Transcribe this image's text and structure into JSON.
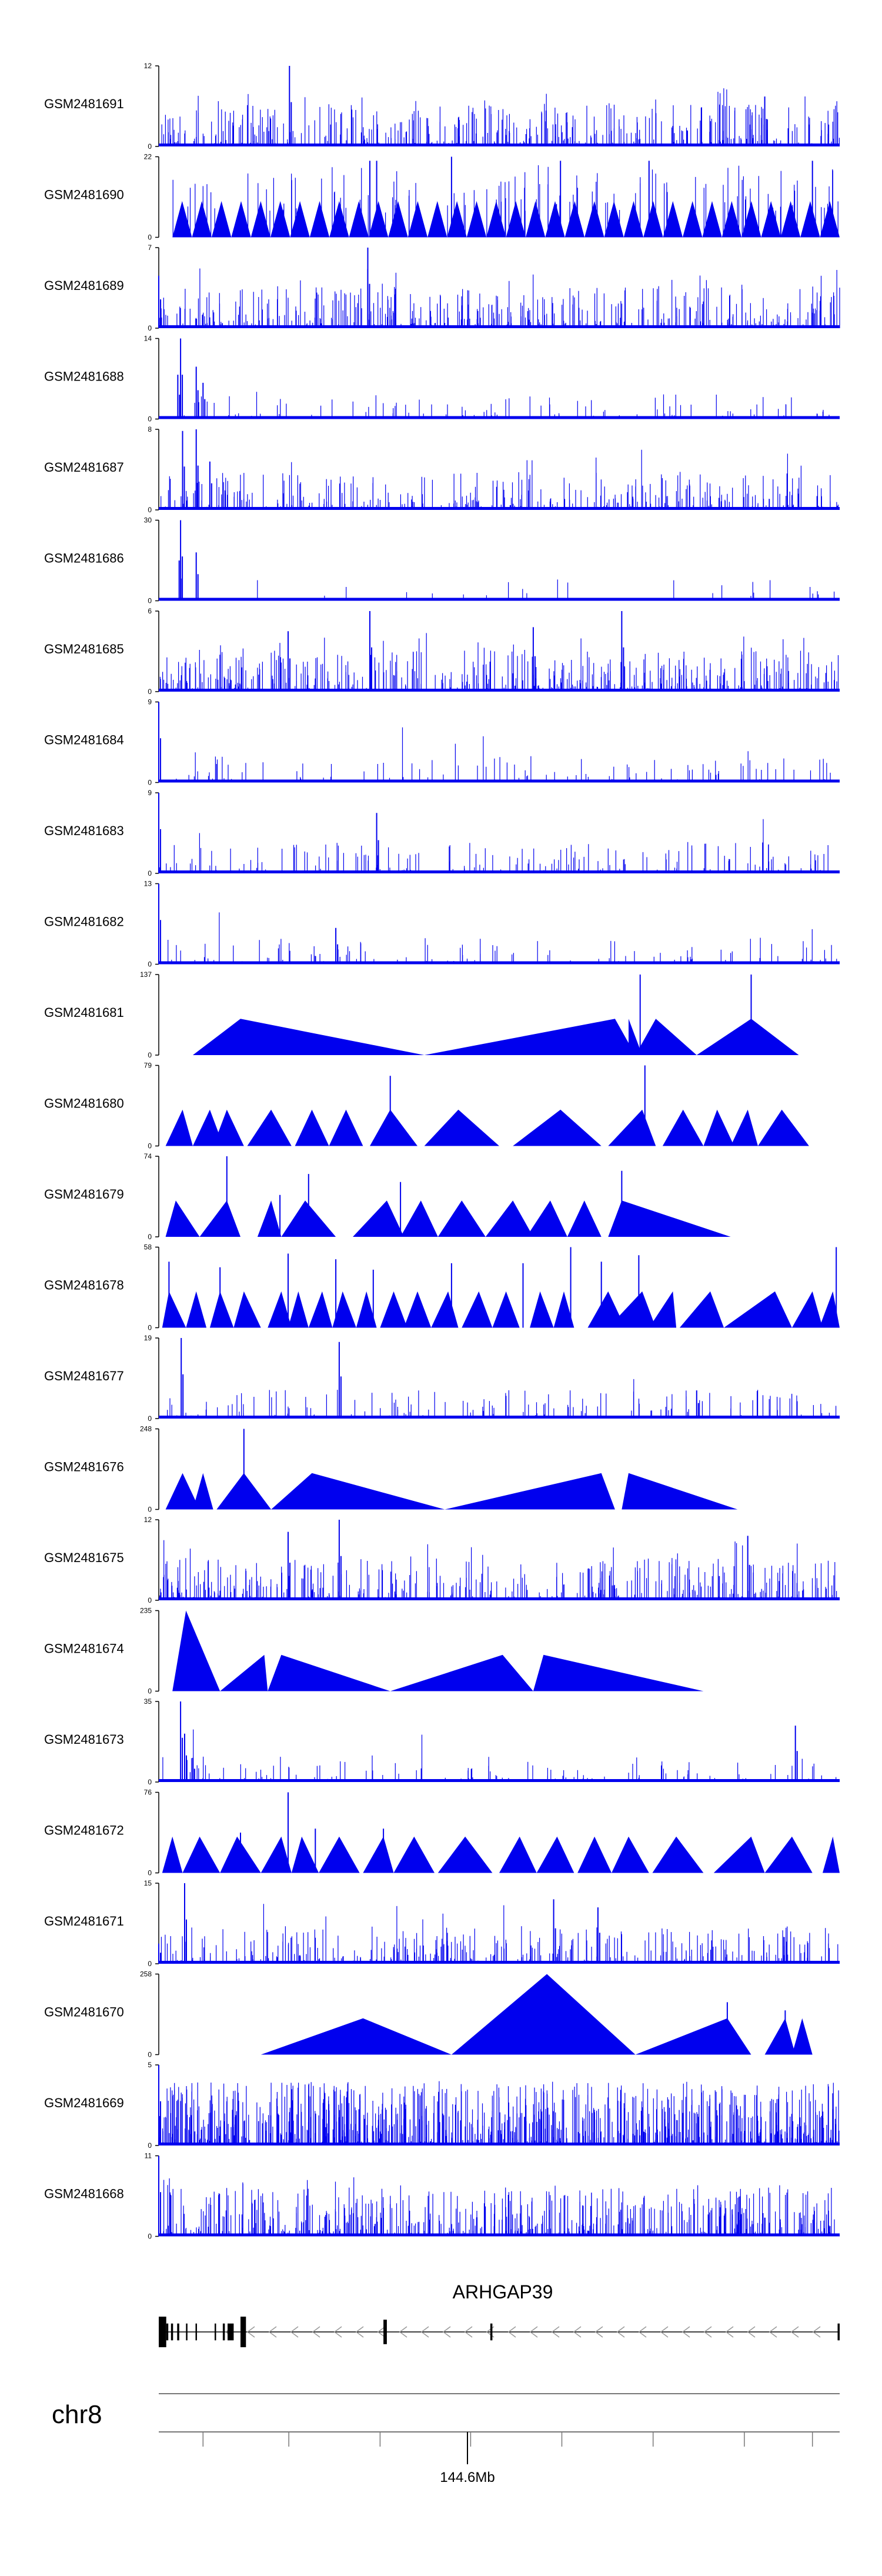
{
  "chart_data": {
    "type": "area",
    "title": "",
    "xlabel": "",
    "ylabel": "",
    "chromosome": "chr8",
    "gene": "ARHGAP39",
    "x_tick_label": "144.6Mb",
    "colors": {
      "signal": "#0000ee",
      "axis": "#000000",
      "gene": "#000000",
      "intron_arrow": "#999999"
    },
    "tracks": [
      {
        "name": "GSM2481691",
        "ymax": 12,
        "pattern": "noise",
        "density": 1.0,
        "spikes": [
          [
            0.192,
            1.0
          ],
          [
            0.89,
            0.62
          ]
        ]
      },
      {
        "name": "GSM2481690",
        "ymax": 22,
        "pattern": "triangles",
        "start": 0.02,
        "end": 1.0,
        "count": 34,
        "peak": 0.45,
        "spikes": [
          [
            0.43,
            1.0
          ],
          [
            0.31,
            0.95
          ],
          [
            0.59,
            0.95
          ],
          [
            0.32,
            0.95
          ],
          [
            0.72,
            0.95
          ],
          [
            0.96,
            0.95
          ]
        ]
      },
      {
        "name": "GSM2481689",
        "ymax": 7,
        "pattern": "noise",
        "density": 1.0,
        "spikes": [
          [
            0.307,
            1.0
          ],
          [
            0.0,
            0.65
          ]
        ]
      },
      {
        "name": "GSM2481688",
        "ymax": 14,
        "pattern": "noise",
        "density": 0.25,
        "spikes": [
          [
            0.032,
            1.0
          ],
          [
            0.055,
            0.65
          ],
          [
            0.028,
            0.55
          ],
          [
            0.065,
            0.45
          ]
        ]
      },
      {
        "name": "GSM2481687",
        "ymax": 8,
        "pattern": "noise",
        "density": 0.8,
        "spikes": [
          [
            0.055,
            1.0
          ],
          [
            0.035,
            0.98
          ],
          [
            0.075,
            0.6
          ]
        ]
      },
      {
        "name": "GSM2481686",
        "ymax": 30,
        "pattern": "noise",
        "density": 0.08,
        "spikes": [
          [
            0.032,
            1.0
          ],
          [
            0.055,
            0.6
          ],
          [
            0.03,
            0.5
          ]
        ]
      },
      {
        "name": "GSM2481685",
        "ymax": 6,
        "pattern": "noise",
        "density": 1.0,
        "spikes": [
          [
            0.31,
            1.0
          ],
          [
            0.68,
            1.0
          ],
          [
            0.19,
            0.75
          ],
          [
            0.55,
            0.8
          ]
        ]
      },
      {
        "name": "GSM2481684",
        "ymax": 9,
        "pattern": "noise",
        "density": 0.3,
        "spikes": [
          [
            0.0,
            1.0
          ]
        ]
      },
      {
        "name": "GSM2481683",
        "ymax": 9,
        "pattern": "noise",
        "density": 0.5,
        "spikes": [
          [
            0.0,
            1.0
          ],
          [
            0.32,
            0.75
          ]
        ]
      },
      {
        "name": "GSM2481682",
        "ymax": 13,
        "pattern": "noise",
        "density": 0.3,
        "spikes": [
          [
            0.0,
            1.0
          ],
          [
            0.26,
            0.45
          ]
        ]
      },
      {
        "name": "GSM2481681",
        "ymax": 137,
        "pattern": "shapes",
        "shapes": [
          [
            0.05,
            0.12,
            0.39,
            0.45
          ],
          [
            0.39,
            0.67,
            0.7,
            0.45
          ],
          [
            0.69,
            0.69,
            0.71,
            0.45
          ],
          [
            0.7,
            0.73,
            0.79,
            0.45
          ],
          [
            0.79,
            0.87,
            0.94,
            0.45
          ]
        ],
        "spikes": [
          [
            0.707,
            1.0
          ],
          [
            0.87,
            1.0
          ]
        ]
      },
      {
        "name": "GSM2481680",
        "ymax": 79,
        "pattern": "shapes",
        "shapes": [
          [
            0.01,
            0.035,
            0.05,
            0.45
          ],
          [
            0.05,
            0.075,
            0.095,
            0.45
          ],
          [
            0.08,
            0.1,
            0.125,
            0.45
          ],
          [
            0.13,
            0.165,
            0.195,
            0.45
          ],
          [
            0.2,
            0.225,
            0.25,
            0.45
          ],
          [
            0.25,
            0.275,
            0.3,
            0.45
          ],
          [
            0.31,
            0.34,
            0.38,
            0.45
          ],
          [
            0.39,
            0.44,
            0.5,
            0.45
          ],
          [
            0.52,
            0.59,
            0.65,
            0.45
          ],
          [
            0.66,
            0.71,
            0.73,
            0.45
          ],
          [
            0.74,
            0.77,
            0.8,
            0.45
          ],
          [
            0.8,
            0.82,
            0.845,
            0.45
          ],
          [
            0.84,
            0.865,
            0.88,
            0.45
          ],
          [
            0.88,
            0.915,
            0.955,
            0.45
          ]
        ],
        "spikes": [
          [
            0.714,
            1.0
          ],
          [
            0.34,
            0.87
          ]
        ]
      },
      {
        "name": "GSM2481679",
        "ymax": 74,
        "pattern": "shapes",
        "shapes": [
          [
            0.01,
            0.025,
            0.06,
            0.45
          ],
          [
            0.06,
            0.1,
            0.12,
            0.45
          ],
          [
            0.145,
            0.165,
            0.18,
            0.45
          ],
          [
            0.18,
            0.215,
            0.26,
            0.45
          ],
          [
            0.285,
            0.335,
            0.36,
            0.45
          ],
          [
            0.355,
            0.385,
            0.41,
            0.45
          ],
          [
            0.41,
            0.445,
            0.48,
            0.45
          ],
          [
            0.48,
            0.52,
            0.55,
            0.45
          ],
          [
            0.54,
            0.575,
            0.6,
            0.45
          ],
          [
            0.6,
            0.625,
            0.65,
            0.45
          ],
          [
            0.66,
            0.68,
            0.84,
            0.45
          ]
        ],
        "spikes": [
          [
            0.1,
            1.0
          ],
          [
            0.68,
            0.82
          ],
          [
            0.22,
            0.78
          ],
          [
            0.355,
            0.68
          ],
          [
            0.178,
            0.52
          ]
        ]
      },
      {
        "name": "GSM2481678",
        "ymax": 58,
        "pattern": "shapes",
        "shapes": [
          [
            0.005,
            0.015,
            0.04,
            0.45
          ],
          [
            0.04,
            0.055,
            0.07,
            0.45
          ],
          [
            0.075,
            0.09,
            0.11,
            0.45
          ],
          [
            0.11,
            0.125,
            0.15,
            0.45
          ],
          [
            0.16,
            0.18,
            0.195,
            0.45
          ],
          [
            0.19,
            0.205,
            0.22,
            0.45
          ],
          [
            0.22,
            0.24,
            0.255,
            0.45
          ],
          [
            0.255,
            0.27,
            0.29,
            0.45
          ],
          [
            0.29,
            0.305,
            0.32,
            0.45
          ],
          [
            0.325,
            0.345,
            0.365,
            0.45
          ],
          [
            0.36,
            0.38,
            0.4,
            0.45
          ],
          [
            0.4,
            0.425,
            0.44,
            0.45
          ],
          [
            0.445,
            0.47,
            0.49,
            0.45
          ],
          [
            0.49,
            0.51,
            0.53,
            0.45
          ],
          [
            0.545,
            0.56,
            0.58,
            0.45
          ],
          [
            0.58,
            0.595,
            0.61,
            0.45
          ],
          [
            0.63,
            0.66,
            0.685,
            0.45
          ],
          [
            0.66,
            0.71,
            0.73,
            0.45
          ],
          [
            0.72,
            0.755,
            0.76,
            0.45
          ],
          [
            0.765,
            0.81,
            0.83,
            0.45
          ],
          [
            0.83,
            0.905,
            0.93,
            0.45
          ],
          [
            0.93,
            0.96,
            0.975,
            0.45
          ],
          [
            0.97,
            0.99,
            1.0,
            0.45
          ]
        ],
        "spikes": [
          [
            0.605,
            1.0
          ],
          [
            0.995,
            1.0
          ],
          [
            0.705,
            0.9
          ],
          [
            0.19,
            0.92
          ],
          [
            0.26,
            0.85
          ],
          [
            0.43,
            0.8
          ],
          [
            0.535,
            0.8
          ],
          [
            0.65,
            0.82
          ],
          [
            0.015,
            0.82
          ],
          [
            0.09,
            0.75
          ],
          [
            0.315,
            0.72
          ]
        ]
      },
      {
        "name": "GSM2481677",
        "ymax": 19,
        "pattern": "noise",
        "density": 0.4,
        "spikes": [
          [
            0.033,
            1.0
          ],
          [
            0.265,
            0.95
          ],
          [
            0.79,
            0.35
          ]
        ]
      },
      {
        "name": "GSM2481676",
        "ymax": 248,
        "pattern": "shapes",
        "shapes": [
          [
            0.01,
            0.035,
            0.06,
            0.45
          ],
          [
            0.05,
            0.065,
            0.08,
            0.45
          ],
          [
            0.085,
            0.125,
            0.165,
            0.45
          ],
          [
            0.165,
            0.225,
            0.42,
            0.45
          ],
          [
            0.42,
            0.65,
            0.67,
            0.45
          ],
          [
            0.68,
            0.69,
            0.85,
            0.45
          ]
        ],
        "spikes": [
          [
            0.125,
            1.0
          ]
        ]
      },
      {
        "name": "GSM2481675",
        "ymax": 12,
        "pattern": "noise",
        "density": 1.0,
        "spikes": [
          [
            0.265,
            1.0
          ],
          [
            0.19,
            0.85
          ],
          [
            0.865,
            0.8
          ]
        ]
      },
      {
        "name": "GSM2481674",
        "ymax": 235,
        "pattern": "shapes",
        "shapes": [
          [
            0.02,
            0.04,
            0.09,
            1.0
          ],
          [
            0.09,
            0.155,
            0.16,
            0.45
          ],
          [
            0.16,
            0.18,
            0.34,
            0.45
          ],
          [
            0.34,
            0.505,
            0.55,
            0.45
          ],
          [
            0.55,
            0.565,
            0.8,
            0.45
          ]
        ],
        "spikes": []
      },
      {
        "name": "GSM2481673",
        "ymax": 35,
        "pattern": "noise",
        "density": 0.3,
        "spikes": [
          [
            0.032,
            1.0
          ],
          [
            0.935,
            0.7
          ],
          [
            0.038,
            0.6
          ],
          [
            0.05,
            0.3
          ]
        ]
      },
      {
        "name": "GSM2481672",
        "ymax": 76,
        "pattern": "shapes",
        "shapes": [
          [
            0.005,
            0.02,
            0.035,
            0.45
          ],
          [
            0.035,
            0.06,
            0.09,
            0.45
          ],
          [
            0.09,
            0.115,
            0.15,
            0.45
          ],
          [
            0.15,
            0.18,
            0.195,
            0.45
          ],
          [
            0.195,
            0.21,
            0.235,
            0.45
          ],
          [
            0.235,
            0.265,
            0.295,
            0.45
          ],
          [
            0.3,
            0.33,
            0.345,
            0.45
          ],
          [
            0.345,
            0.375,
            0.405,
            0.45
          ],
          [
            0.41,
            0.45,
            0.49,
            0.45
          ],
          [
            0.5,
            0.53,
            0.555,
            0.45
          ],
          [
            0.555,
            0.585,
            0.61,
            0.45
          ],
          [
            0.615,
            0.64,
            0.665,
            0.45
          ],
          [
            0.665,
            0.69,
            0.72,
            0.45
          ],
          [
            0.725,
            0.76,
            0.8,
            0.45
          ],
          [
            0.815,
            0.87,
            0.89,
            0.45
          ],
          [
            0.89,
            0.93,
            0.96,
            0.45
          ],
          [
            0.975,
            0.99,
            1.0,
            0.45
          ]
        ],
        "spikes": [
          [
            0.19,
            1.0
          ],
          [
            0.23,
            0.55
          ],
          [
            0.33,
            0.55
          ],
          [
            0.12,
            0.5
          ]
        ]
      },
      {
        "name": "GSM2481671",
        "ymax": 15,
        "pattern": "noise",
        "density": 0.8,
        "spikes": [
          [
            0.038,
            1.0
          ],
          [
            0.58,
            0.8
          ],
          [
            0.645,
            0.7
          ],
          [
            0.0,
            0.25
          ]
        ]
      },
      {
        "name": "GSM2481670",
        "ymax": 258,
        "pattern": "shapes",
        "shapes": [
          [
            0.15,
            0.3,
            0.43,
            0.45
          ],
          [
            0.43,
            0.57,
            0.7,
            1.0
          ],
          [
            0.7,
            0.835,
            0.87,
            0.45
          ],
          [
            0.89,
            0.92,
            0.935,
            0.45
          ],
          [
            0.93,
            0.945,
            0.96,
            0.45
          ]
        ],
        "spikes": [
          [
            0.835,
            0.65
          ],
          [
            0.92,
            0.55
          ]
        ]
      },
      {
        "name": "GSM2481669",
        "ymax": 5,
        "pattern": "noise",
        "density": 2.0,
        "spikes": [
          [
            0.0,
            1.0
          ]
        ]
      },
      {
        "name": "GSM2481668",
        "ymax": 11,
        "pattern": "noise",
        "density": 1.3,
        "spikes": [
          [
            0.0,
            1.0
          ]
        ]
      }
    ],
    "gene_model": {
      "direction": "minus",
      "exons": [
        [
          0.0,
          0.011,
          1.0
        ],
        [
          0.011,
          0.014,
          0.55
        ],
        [
          0.018,
          0.021,
          0.55
        ],
        [
          0.027,
          0.03,
          0.55
        ],
        [
          0.04,
          0.042,
          0.55
        ],
        [
          0.054,
          0.056,
          0.55
        ],
        [
          0.082,
          0.084,
          0.55
        ],
        [
          0.094,
          0.097,
          0.55
        ],
        [
          0.101,
          0.11,
          0.55
        ],
        [
          0.12,
          0.128,
          1.0
        ],
        [
          0.33,
          0.335,
          0.8
        ],
        [
          0.487,
          0.49,
          0.55
        ],
        [
          0.997,
          1.0,
          0.55
        ]
      ]
    }
  }
}
